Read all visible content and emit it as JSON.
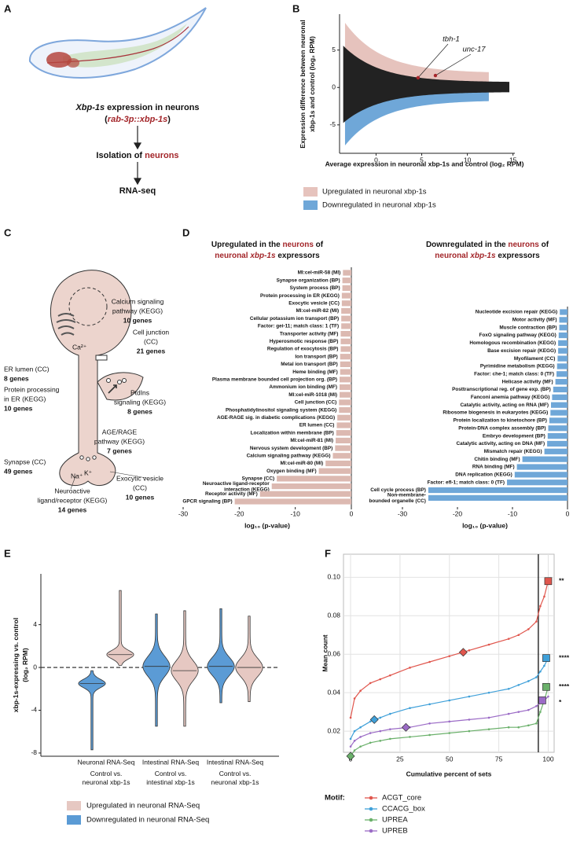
{
  "panel_labels": [
    "A",
    "B",
    "C",
    "D",
    "E",
    "F"
  ],
  "diagram_a": {
    "title": [
      "Xbp-1s",
      " expression in neurons"
    ],
    "construct": [
      "(",
      "rab-3p::xbp-1s",
      ")"
    ],
    "isolation": [
      "Isolation of ",
      "neurons"
    ],
    "method": "RNA-seq"
  },
  "diagram_c": {
    "labels": [
      {
        "lines": [
          "Calcium signaling",
          "pathway (KEGG)"
        ],
        "genes": "10 genes"
      },
      {
        "lines": [
          "Cell junction",
          "(CC)"
        ],
        "genes": "21 genes"
      },
      {
        "lines": [
          "ER lumen (CC)"
        ],
        "genes": "8 genes"
      },
      {
        "lines": [
          "Protein processing",
          "in ER (KEGG)"
        ],
        "genes": "10 genes"
      },
      {
        "lines": [
          "PtdIns",
          "signaling (KEGG)"
        ],
        "genes": "8 genes"
      },
      {
        "lines": [
          "AGE/RAGE",
          "pathway (KEGG)"
        ],
        "genes": "7 genes"
      },
      {
        "lines": [
          "Synapse (CC)"
        ],
        "genes": "49 genes"
      },
      {
        "lines": [
          "Exocytic vesicle",
          "(CC)"
        ],
        "genes": "10 genes"
      },
      {
        "lines": [
          "Neuroactive",
          "ligand/receptor (KEGG)"
        ],
        "genes": "14 genes"
      }
    ],
    "ions": [
      "Ca²⁺",
      "Na⁺",
      "K⁺"
    ]
  },
  "chart_data": [
    {
      "type": "scatter",
      "xlabel": "Average expression in neuronal xbp-1s and control (log₂ RPM)",
      "ylabel": "Expression difference between neuronal\nxbp-1s and control (log₂ RPM)",
      "xlim": [
        -4,
        15.2
      ],
      "ylim": [
        -8.8,
        9.8
      ],
      "xticks": [
        0,
        5,
        10,
        15
      ],
      "yticks": [
        -5,
        0,
        5
      ],
      "x": [
        4.6,
        6.5
      ],
      "values": [
        1.3,
        1.6
      ],
      "point_labels": [
        "tbh-1",
        "unc-17"
      ],
      "point_color": "#a8262b",
      "legend": [
        {
          "name": "Upregulated in neuronal xbp-1s",
          "color": "#e6c3bd"
        },
        {
          "name": "Downregulated in neuronal xbp-1s",
          "color": "#6fa7d8"
        }
      ]
    },
    {
      "type": "bar",
      "orientation": "horizontal",
      "title_lines": [
        [
          "Upregulated in the ",
          "neurons",
          " of"
        ],
        [
          "neuronal ",
          "xbp-1s",
          " expressors"
        ]
      ],
      "xlabel": "log₁₀ (p-value)",
      "xlim": [
        -30,
        0
      ],
      "xticks": [
        -30,
        -20,
        -10,
        0
      ],
      "color": "#dcb9b1",
      "categories": [
        "MI:cel-miR-58 (MI)",
        "Synapse organization (BP)",
        "System process (BP)",
        "Protein processing in ER (KEGG)",
        "Exocytic vesicle (CC)",
        "MI:cel-miR-82 (MI)",
        "Cellular potassium ion transport (BP)",
        "Factor: gei-11; match class: 1 (TF)",
        "Transporter activity (MF)",
        "Hyperosmotic response (BP)",
        "Regulation of exocytosis (BP)",
        "Ion transport (BP)",
        "Metal ion transport (BP)",
        "Heme binding (MF)",
        "Plasma membrane bounded cell projection org. (BP)",
        "Ammonium ion binding (MF)",
        "MI:cel-miR-1018 (MI)",
        "Cell junction (CC)",
        "Phosphatidylinositol signaling system (KEGG)",
        "AGE-RAGE sig. in diabetic complications (KEGG)",
        "ER lumen (CC)",
        "Localization within membrane (BP)",
        "MI:cel-miR-81 (MI)",
        "Nervous system development (BP)",
        "Calcium signaling pathway (KEGG)",
        "MI:cel-miR-80 (MI)",
        "Oxygen binding (MF)",
        "Synapse (CC)",
        "Neuroactive ligand-receptor\ninteraction (KEGG)",
        "Receptor activity (MF)",
        "GPCR signaling (BP)"
      ],
      "values": [
        -1.5,
        -1.6,
        -1.6,
        -1.7,
        -1.7,
        -1.8,
        -1.8,
        -1.8,
        -1.9,
        -1.9,
        -1.9,
        -2.0,
        -2.0,
        -2.0,
        -2.1,
        -2.1,
        -2.1,
        -2.2,
        -2.2,
        -2.5,
        -2.6,
        -2.7,
        -2.8,
        -2.9,
        -3.3,
        -4.6,
        -5.8,
        -13.3,
        -14.2,
        -16.3,
        -20.8
      ]
    },
    {
      "type": "bar",
      "orientation": "horizontal",
      "title_lines": [
        [
          "Downregulated in the ",
          "neurons",
          " of"
        ],
        [
          "neuronal ",
          "xbp-1s",
          " expressors"
        ]
      ],
      "xlabel": "log₁₀ (p-value)",
      "xlim": [
        -30,
        0
      ],
      "xticks": [
        -30,
        -20,
        -10,
        0
      ],
      "color": "#6fa7d8",
      "categories": [
        "Nucleotide excision repair (KEGG)",
        "Motor activity (MF)",
        "Muscle contraction (BP)",
        "FoxO signaling pathway (KEGG)",
        "Homologous recombination (KEGG)",
        "Base excision repair (KEGG)",
        "Myofilament (CC)",
        "Pyrimidine metabolism (KEGG)",
        "Factor: che-1; match class: 0 (TF)",
        "Helicase activity (MF)",
        "Posttranscriptional reg. of gene exp. (BP)",
        "Fanconi anemia pathway (KEGG)",
        "Catalytic activity, acting on RNA (MF)",
        "Ribosome biogenesis in eukaryotes (KEGG)",
        "Protein localization to kinetochore (BP)",
        "Protein-DNA complex assembly (BP)",
        "Embryo development (BP)",
        "Catalytic activity, acting on DNA (MF)",
        "Mismatch repair (KEGG)",
        "Chitin binding (MF)",
        "RNA binding (MF)",
        "DNA replication (KEGG)",
        "Factor: efl-1; match class: 0 (TF)",
        "Cell cycle process (BP)",
        "Non-membrane-\nbounded organelle (CC)"
      ],
      "values": [
        -1.4,
        -1.5,
        -1.5,
        -1.6,
        -1.7,
        -1.7,
        -1.8,
        -1.9,
        -2.0,
        -2.2,
        -2.6,
        -2.8,
        -3.0,
        -3.1,
        -3.3,
        -3.5,
        -3.6,
        -3.7,
        -4.2,
        -8.2,
        -9.2,
        -9.6,
        -11.0,
        -25.3,
        -25.3
      ]
    },
    {
      "type": "violin",
      "ylabel": "xbp-1s-expressing vs. control\n(log₂ RPM)",
      "ylim": [
        -8.3,
        8.75
      ],
      "yticks": [
        -8,
        -4,
        0,
        4
      ],
      "reference_line": 0,
      "categories": [
        "Neuronal RNA-Seq",
        "Intestinal RNA-Seq",
        "Intestinal RNA-Seq"
      ],
      "category_colors": [
        "#b5474a",
        "#3f9a4a",
        "#3f9a4a"
      ],
      "category_notes": [
        "Control vs.\nneuronal xbp-1s",
        "Control vs.\nintestinal xbp-1s",
        "Control vs.\nneuronal xbp-1s"
      ],
      "series": [
        {
          "name": "Downregulated in neuronal RNA-Seq",
          "color": "#5b9bd5",
          "values": [
            -1.5,
            0.1,
            0.1
          ],
          "min": [
            -7.7,
            -5.5,
            -3.3
          ],
          "max": [
            -0.3,
            5.0,
            5.5
          ]
        },
        {
          "name": "Upregulated in neuronal RNA-Seq",
          "color": "#e6c8c2",
          "values": [
            1.2,
            -0.3,
            0
          ],
          "min": [
            0.2,
            -5.5,
            -3.2
          ],
          "max": [
            7.2,
            5.3,
            4.8
          ]
        }
      ]
    },
    {
      "type": "line",
      "xlabel": "Cumulative percent of sets",
      "ylabel": "Mean count",
      "legend_title": "Motif:",
      "grid": true,
      "vline": 95,
      "xlim": [
        -3.6,
        103
      ],
      "ylim": [
        0.009,
        0.112
      ],
      "xticks": [
        0,
        25,
        50,
        75,
        100
      ],
      "yticks": [
        0.02,
        0.04,
        0.06,
        0.08,
        {
          "value": 0.1,
          "label": "0.10"
        }
      ],
      "x": [
        0,
        2,
        5,
        10,
        15,
        20,
        30,
        40,
        50,
        60,
        70,
        80,
        85,
        90,
        94,
        96,
        98,
        100
      ],
      "series": [
        {
          "name": "ACGT_core",
          "color": "#e0564d",
          "values": [
            0.027,
            0.037,
            0.041,
            0.045,
            0.047,
            0.049,
            0.053,
            0.056,
            0.059,
            0.062,
            0.065,
            0.068,
            0.07,
            0.073,
            0.077,
            0.085,
            0.09,
            0.098
          ],
          "highlight_diamond": {
            "x": 57,
            "value": 0.061
          },
          "highlight_square": {
            "x": 100,
            "value": 0.098
          },
          "annotation": "**"
        },
        {
          "name": "CCACG_box",
          "color": "#3fa0d9",
          "values": [
            0.016,
            0.02,
            0.022,
            0.025,
            0.027,
            0.029,
            0.032,
            0.034,
            0.036,
            0.038,
            0.04,
            0.042,
            0.044,
            0.046,
            0.048,
            0.051,
            0.054,
            0.058
          ],
          "highlight_diamond": {
            "x": 12,
            "value": 0.026
          },
          "highlight_square": {
            "x": 99,
            "value": 0.058
          },
          "annotation": "****"
        },
        {
          "name": "UPREA",
          "color": "#6ab06a",
          "values": [
            0.007,
            0.01,
            0.012,
            0.014,
            0.015,
            0.016,
            0.017,
            0.018,
            0.019,
            0.02,
            0.021,
            0.022,
            0.022,
            0.023,
            0.024,
            0.03,
            0.036,
            0.043
          ],
          "highlight_diamond": {
            "x": 0,
            "value": 0.007
          },
          "highlight_square": {
            "x": 99,
            "value": 0.043
          },
          "annotation": "****"
        },
        {
          "name": "UPREB",
          "color": "#9b6bc6",
          "values": [
            0.012,
            0.015,
            0.017,
            0.019,
            0.02,
            0.021,
            0.022,
            0.024,
            0.025,
            0.026,
            0.027,
            0.029,
            0.03,
            0.031,
            0.033,
            0.035,
            0.036,
            0.038
          ],
          "highlight_diamond": {
            "x": 28,
            "value": 0.022
          },
          "highlight_square": {
            "x": 97,
            "value": 0.036
          },
          "annotation": "*"
        }
      ]
    }
  ]
}
